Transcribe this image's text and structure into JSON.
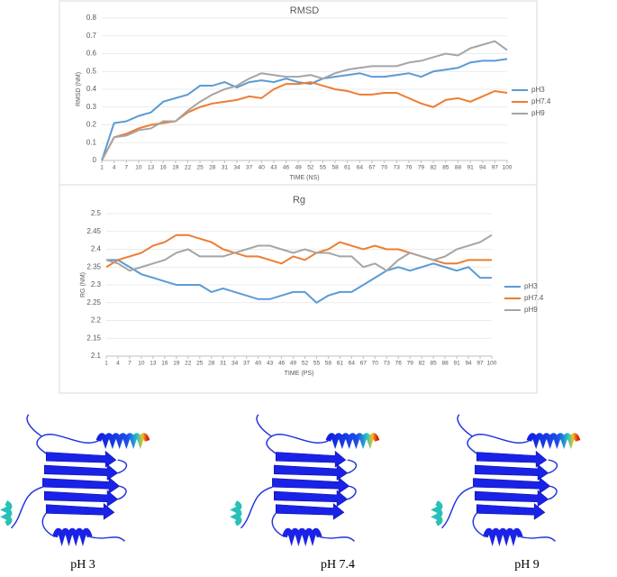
{
  "chart_data": [
    {
      "type": "line",
      "title": "RMSD",
      "xlabel": "TIME (NS)",
      "ylabel": "RMSD (NM)",
      "x": [
        1,
        4,
        7,
        10,
        13,
        16,
        19,
        22,
        25,
        28,
        31,
        34,
        37,
        40,
        43,
        46,
        49,
        52,
        55,
        58,
        61,
        64,
        67,
        70,
        73,
        76,
        79,
        82,
        85,
        88,
        91,
        94,
        97,
        100
      ],
      "xlim": [
        1,
        100
      ],
      "xticks": [
        1,
        4,
        7,
        10,
        13,
        16,
        19,
        22,
        25,
        28,
        31,
        34,
        37,
        40,
        43,
        46,
        49,
        52,
        55,
        58,
        61,
        64,
        67,
        70,
        73,
        76,
        79,
        82,
        85,
        88,
        91,
        94,
        97,
        100
      ],
      "ylim": [
        0,
        0.8
      ],
      "yticks": [
        0,
        0.1,
        0.2,
        0.3,
        0.4,
        0.5,
        0.6,
        0.7,
        0.8
      ],
      "grid": true,
      "legend": "right",
      "series": [
        {
          "name": "pH3",
          "color": "#5b9bd5",
          "values": [
            0,
            0.21,
            0.22,
            0.25,
            0.27,
            0.33,
            0.35,
            0.37,
            0.42,
            0.42,
            0.44,
            0.41,
            0.44,
            0.45,
            0.44,
            0.46,
            0.44,
            0.43,
            0.46,
            0.47,
            0.48,
            0.49,
            0.47,
            0.47,
            0.48,
            0.49,
            0.47,
            0.5,
            0.51,
            0.52,
            0.55,
            0.56,
            0.56,
            0.57
          ]
        },
        {
          "name": "pH7.4",
          "color": "#ed7d31",
          "values": [
            0,
            0.13,
            0.15,
            0.18,
            0.2,
            0.21,
            0.22,
            0.27,
            0.3,
            0.32,
            0.33,
            0.34,
            0.36,
            0.35,
            0.4,
            0.43,
            0.43,
            0.44,
            0.42,
            0.4,
            0.39,
            0.37,
            0.37,
            0.38,
            0.38,
            0.35,
            0.32,
            0.3,
            0.34,
            0.35,
            0.33,
            0.36,
            0.39,
            0.38
          ]
        },
        {
          "name": "pH9",
          "color": "#a5a5a5",
          "values": [
            0,
            0.13,
            0.14,
            0.17,
            0.18,
            0.22,
            0.22,
            0.28,
            0.33,
            0.37,
            0.4,
            0.42,
            0.46,
            0.49,
            0.48,
            0.47,
            0.47,
            0.48,
            0.46,
            0.49,
            0.51,
            0.52,
            0.53,
            0.53,
            0.53,
            0.55,
            0.56,
            0.58,
            0.6,
            0.59,
            0.63,
            0.65,
            0.67,
            0.62
          ]
        }
      ]
    },
    {
      "type": "line",
      "title": "Rg",
      "xlabel": "TIME (PS)",
      "ylabel": "RG (NM)",
      "x": [
        1,
        4,
        7,
        10,
        13,
        16,
        19,
        22,
        25,
        28,
        31,
        34,
        37,
        40,
        43,
        46,
        49,
        52,
        55,
        58,
        61,
        64,
        67,
        70,
        73,
        76,
        79,
        82,
        85,
        88,
        91,
        94,
        97,
        100
      ],
      "xlim": [
        1,
        100
      ],
      "xticks": [
        1,
        4,
        7,
        10,
        13,
        16,
        19,
        22,
        25,
        28,
        31,
        34,
        37,
        40,
        43,
        46,
        49,
        52,
        55,
        58,
        61,
        64,
        67,
        70,
        73,
        76,
        79,
        82,
        85,
        88,
        91,
        94,
        97,
        100
      ],
      "ylim": [
        2.1,
        2.5
      ],
      "yticks": [
        2.1,
        2.15,
        2.2,
        2.25,
        2.3,
        2.35,
        2.4,
        2.45,
        2.5
      ],
      "grid": true,
      "legend": "right",
      "series": [
        {
          "name": "pH3",
          "color": "#5b9bd5",
          "values": [
            2.37,
            2.37,
            2.35,
            2.33,
            2.32,
            2.31,
            2.3,
            2.3,
            2.3,
            2.28,
            2.29,
            2.28,
            2.27,
            2.26,
            2.26,
            2.27,
            2.28,
            2.28,
            2.25,
            2.27,
            2.28,
            2.28,
            2.3,
            2.32,
            2.34,
            2.35,
            2.34,
            2.35,
            2.36,
            2.35,
            2.34,
            2.35,
            2.32,
            2.32
          ]
        },
        {
          "name": "pH7.4",
          "color": "#ed7d31",
          "values": [
            2.35,
            2.37,
            2.38,
            2.39,
            2.41,
            2.42,
            2.44,
            2.44,
            2.43,
            2.42,
            2.4,
            2.39,
            2.38,
            2.38,
            2.37,
            2.36,
            2.38,
            2.37,
            2.39,
            2.4,
            2.42,
            2.41,
            2.4,
            2.41,
            2.4,
            2.4,
            2.39,
            2.38,
            2.37,
            2.36,
            2.36,
            2.37,
            2.37,
            2.37
          ]
        },
        {
          "name": "pH9",
          "color": "#a5a5a5",
          "values": [
            2.37,
            2.36,
            2.34,
            2.35,
            2.36,
            2.37,
            2.39,
            2.4,
            2.38,
            2.38,
            2.38,
            2.39,
            2.4,
            2.41,
            2.41,
            2.4,
            2.39,
            2.4,
            2.39,
            2.39,
            2.38,
            2.38,
            2.35,
            2.36,
            2.34,
            2.37,
            2.39,
            2.38,
            2.37,
            2.38,
            2.4,
            2.41,
            2.42,
            2.44
          ]
        }
      ]
    }
  ],
  "panels": [
    {
      "label": "pH 3"
    },
    {
      "label": "pH 7.4"
    },
    {
      "label": "pH 9"
    }
  ]
}
